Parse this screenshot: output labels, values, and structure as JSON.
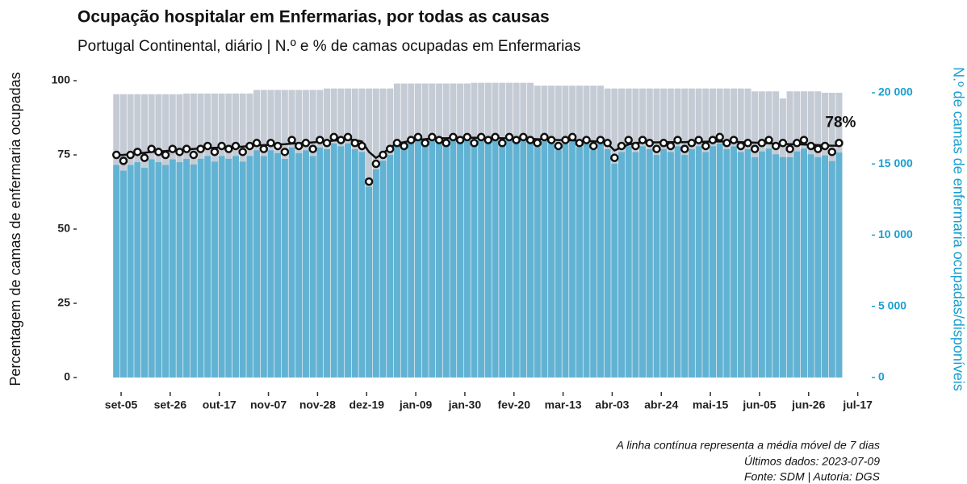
{
  "chart_data": {
    "type": "bar",
    "title": "Ocupação hospitalar em Enfermarias, por todas as causas",
    "subtitle": "Portugal Continental, diário | N.º e % de camas ocupadas em Enfermarias",
    "y_label": "Percentagem de camas de enfermaria ocupadas",
    "y2_label": "N.º de camas de enfermaria ocupadas/disponíveis",
    "annotation": "78%",
    "caption": [
      "A linha contínua representa a média móvel de 7 dias",
      "Últimos dados: 2023-07-09",
      "Fonte: SDM | Autoria: DGS"
    ],
    "x": [
      "2022-09-03",
      "2022-09-06",
      "2022-09-09",
      "2022-09-12",
      "2022-09-15",
      "2022-09-18",
      "2022-09-21",
      "2022-09-24",
      "2022-09-27",
      "2022-09-30",
      "2022-10-03",
      "2022-10-06",
      "2022-10-09",
      "2022-10-12",
      "2022-10-15",
      "2022-10-18",
      "2022-10-21",
      "2022-10-24",
      "2022-10-27",
      "2022-10-30",
      "2022-11-02",
      "2022-11-05",
      "2022-11-08",
      "2022-11-11",
      "2022-11-14",
      "2022-11-17",
      "2022-11-20",
      "2022-11-23",
      "2022-11-26",
      "2022-11-29",
      "2022-12-02",
      "2022-12-05",
      "2022-12-08",
      "2022-12-11",
      "2022-12-14",
      "2022-12-17",
      "2022-12-20",
      "2022-12-23",
      "2022-12-26",
      "2022-12-29",
      "2023-01-01",
      "2023-01-04",
      "2023-01-07",
      "2023-01-10",
      "2023-01-13",
      "2023-01-16",
      "2023-01-19",
      "2023-01-22",
      "2023-01-25",
      "2023-01-28",
      "2023-01-31",
      "2023-02-03",
      "2023-02-06",
      "2023-02-09",
      "2023-02-12",
      "2023-02-15",
      "2023-02-18",
      "2023-02-21",
      "2023-02-24",
      "2023-02-27",
      "2023-03-02",
      "2023-03-05",
      "2023-03-08",
      "2023-03-11",
      "2023-03-14",
      "2023-03-17",
      "2023-03-20",
      "2023-03-23",
      "2023-03-26",
      "2023-03-29",
      "2023-04-01",
      "2023-04-04",
      "2023-04-07",
      "2023-04-10",
      "2023-04-13",
      "2023-04-16",
      "2023-04-19",
      "2023-04-22",
      "2023-04-25",
      "2023-04-28",
      "2023-05-01",
      "2023-05-04",
      "2023-05-07",
      "2023-05-10",
      "2023-05-13",
      "2023-05-16",
      "2023-05-19",
      "2023-05-22",
      "2023-05-25",
      "2023-05-28",
      "2023-05-31",
      "2023-06-03",
      "2023-06-06",
      "2023-06-09",
      "2023-06-12",
      "2023-06-15",
      "2023-06-18",
      "2023-06-21",
      "2023-06-24",
      "2023-06-27",
      "2023-06-30",
      "2023-07-03",
      "2023-07-06",
      "2023-07-09"
    ],
    "xlim": [
      "2022-08-17",
      "2023-07-23"
    ],
    "xticks": [
      {
        "value": "2022-09-05",
        "label": "set-05"
      },
      {
        "value": "2022-09-26",
        "label": "set-26"
      },
      {
        "value": "2022-10-17",
        "label": "out-17"
      },
      {
        "value": "2022-11-07",
        "label": "nov-07"
      },
      {
        "value": "2022-11-28",
        "label": "nov-28"
      },
      {
        "value": "2022-12-19",
        "label": "dez-19"
      },
      {
        "value": "2023-01-09",
        "label": "jan-09"
      },
      {
        "value": "2023-01-30",
        "label": "jan-30"
      },
      {
        "value": "2023-02-20",
        "label": "fev-20"
      },
      {
        "value": "2023-03-13",
        "label": "mar-13"
      },
      {
        "value": "2023-04-03",
        "label": "abr-03"
      },
      {
        "value": "2023-04-24",
        "label": "abr-24"
      },
      {
        "value": "2023-05-15",
        "label": "mai-15"
      },
      {
        "value": "2023-06-05",
        "label": "jun-05"
      },
      {
        "value": "2023-06-26",
        "label": "jun-26"
      },
      {
        "value": "2023-07-17",
        "label": "jul-17"
      }
    ],
    "ylim": [
      0,
      100
    ],
    "yticks": [
      0,
      25,
      50,
      75,
      100
    ],
    "y2lim": [
      0,
      20850
    ],
    "y2ticks": [
      0,
      {
        "value": 5000,
        "label": "5 000"
      },
      {
        "value": 10000,
        "label": "10 000"
      },
      {
        "value": 15000,
        "label": "15 000"
      },
      {
        "value": 20000,
        "label": "20 000"
      }
    ],
    "series": [
      {
        "name": "Camas disponíveis",
        "type": "bar",
        "axis": "y2",
        "color": "#c5cbd4",
        "values": [
          19900,
          19900,
          19900,
          19900,
          19900,
          19900,
          19900,
          19900,
          19900,
          19900,
          19950,
          19950,
          19950,
          19950,
          19950,
          19950,
          19950,
          19950,
          19950,
          19950,
          20200,
          20200,
          20200,
          20200,
          20200,
          20200,
          20200,
          20200,
          20200,
          20200,
          20300,
          20300,
          20300,
          20300,
          20300,
          20300,
          20300,
          20300,
          20300,
          20300,
          20650,
          20650,
          20650,
          20650,
          20650,
          20650,
          20650,
          20650,
          20650,
          20650,
          20650,
          20700,
          20700,
          20700,
          20700,
          20700,
          20700,
          20700,
          20700,
          20700,
          20500,
          20500,
          20500,
          20500,
          20500,
          20500,
          20500,
          20500,
          20500,
          20500,
          20300,
          20300,
          20300,
          20300,
          20300,
          20300,
          20300,
          20300,
          20300,
          20300,
          20300,
          20300,
          20300,
          20300,
          20300,
          20300,
          20300,
          20300,
          20300,
          20300,
          20300,
          20100,
          20100,
          20100,
          20100,
          19600,
          20100,
          20100,
          20100,
          20100,
          20100,
          20000,
          20000,
          20000
        ]
      },
      {
        "name": "Camas ocupadas",
        "type": "bar",
        "axis": "y2",
        "color": "#62b3d3",
        "values": [
          14925,
          14527,
          14925,
          15124,
          14726,
          15323,
          15124,
          14925,
          15323,
          15124,
          15362,
          14963,
          15362,
          15561,
          15162,
          15561,
          15362,
          15561,
          15162,
          15561,
          15958,
          15554,
          15958,
          15756,
          15352,
          16160,
          15756,
          15958,
          15554,
          16160,
          16037,
          16443,
          16240,
          16443,
          16037,
          15834,
          13398,
          14616,
          15225,
          15631,
          16314,
          16107,
          16520,
          16727,
          16314,
          16727,
          16520,
          16314,
          16727,
          16520,
          16727,
          16353,
          16767,
          16560,
          16767,
          16353,
          16767,
          16560,
          16767,
          16560,
          16195,
          16605,
          16400,
          15990,
          16400,
          16605,
          16195,
          16400,
          15990,
          16400,
          16037,
          15022,
          15834,
          16240,
          15834,
          16240,
          16037,
          15631,
          16037,
          15834,
          16240,
          15631,
          16037,
          16240,
          15834,
          16240,
          16443,
          16037,
          16240,
          15834,
          16037,
          15477,
          15879,
          16080,
          15678,
          15484,
          15477,
          15879,
          16080,
          15678,
          15477,
          15600,
          15200,
          15800
        ]
      },
      {
        "name": "% ocupação",
        "type": "scatter",
        "axis": "y",
        "color": "#111111",
        "values": [
          75,
          73,
          75,
          76,
          74,
          77,
          76,
          75,
          77,
          76,
          77,
          75,
          77,
          78,
          76,
          78,
          77,
          78,
          76,
          78,
          79,
          77,
          79,
          78,
          76,
          80,
          78,
          79,
          77,
          80,
          79,
          81,
          80,
          81,
          79,
          78,
          66,
          72,
          75,
          77,
          79,
          78,
          80,
          81,
          79,
          81,
          80,
          79,
          81,
          80,
          81,
          79,
          81,
          80,
          81,
          79,
          81,
          80,
          81,
          80,
          79,
          81,
          80,
          78,
          80,
          81,
          79,
          80,
          78,
          80,
          79,
          74,
          78,
          80,
          78,
          80,
          79,
          77,
          79,
          78,
          80,
          77,
          79,
          80,
          78,
          80,
          81,
          79,
          80,
          78,
          79,
          77,
          79,
          80,
          78,
          79,
          77,
          79,
          80,
          78,
          77,
          78,
          76,
          79
        ]
      },
      {
        "name": "Média móvel 7 dias",
        "type": "line",
        "axis": "y",
        "color": "#111111",
        "values": [
          74.8,
          75,
          75.2,
          75.5,
          75.7,
          76,
          76.2,
          76.3,
          76.5,
          76.6,
          76.8,
          77,
          77.2,
          77.3,
          77.4,
          77.5,
          77.6,
          77.7,
          77.8,
          78,
          78.2,
          78.3,
          78.4,
          78.5,
          78.6,
          78.8,
          78.9,
          79,
          79.2,
          79.4,
          79.6,
          79.8,
          80,
          80.2,
          80,
          79.5,
          76,
          74,
          75.5,
          77.5,
          78.8,
          79.3,
          79.8,
          80.1,
          80.3,
          80.5,
          80.6,
          80.6,
          80.7,
          80.8,
          80.8,
          80.8,
          80.8,
          80.7,
          80.7,
          80.6,
          80.6,
          80.5,
          80.5,
          80.4,
          80.3,
          80.2,
          80.1,
          80,
          80,
          79.9,
          79.8,
          79.7,
          79.6,
          79.4,
          78.8,
          76.5,
          77.5,
          78.5,
          79,
          79.1,
          79.2,
          79.2,
          79.3,
          79.3,
          79.3,
          79.3,
          79.4,
          79.4,
          79.4,
          79.5,
          79.5,
          79.5,
          79.4,
          79.3,
          79.2,
          79.1,
          79,
          78.9,
          78.8,
          78.7,
          78.6,
          78.6,
          78.5,
          78.4,
          78.3,
          78.2,
          78.1,
          78.1
        ]
      }
    ]
  }
}
